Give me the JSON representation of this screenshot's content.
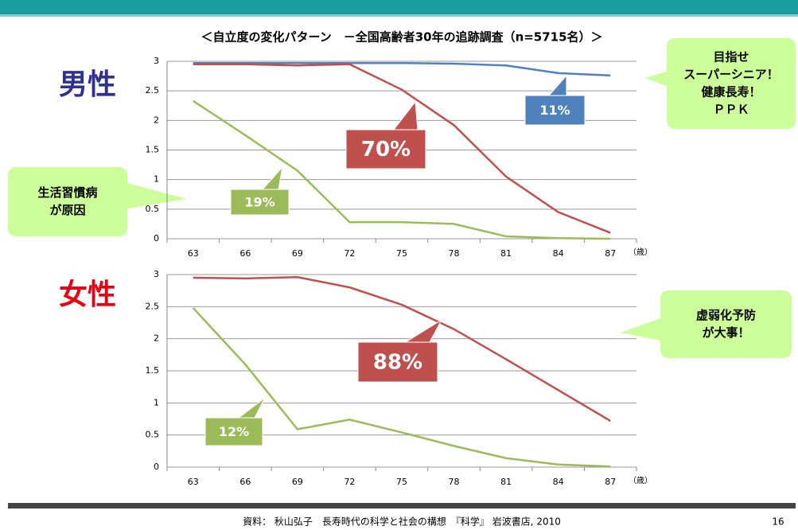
{
  "title": "＜自立度の変化パターン　－全国高齢者30年の追跡調査（n=5715名）＞",
  "source": "資料： 秋山弘子　長寿時代の科学と社会の構想　『科学』 岩波書店, 2010",
  "page_number": "16",
  "callouts": [
    {
      "lines": [
        "目指せ",
        "スーパーシニア！",
        "健康長寿！",
        "ＰＰＫ"
      ]
    },
    {
      "lines": [
        "生活習慣病",
        "が原因"
      ]
    },
    {
      "lines": [
        "虚弱化予防",
        "が大事！"
      ]
    }
  ],
  "chart_data": [
    {
      "type": "line",
      "title": "男性",
      "title_color": "#2e3192",
      "x_label": "（歳）",
      "categories": [
        "63",
        "66",
        "69",
        "72",
        "75",
        "78",
        "81",
        "84",
        "87"
      ],
      "ylim": [
        0,
        3
      ],
      "yticks": [
        0,
        0.5,
        1,
        1.5,
        2,
        2.5,
        3
      ],
      "grid": true,
      "series": [
        {
          "color": "#4f81bd",
          "values": [
            2.97,
            2.97,
            2.97,
            2.97,
            2.97,
            2.96,
            2.93,
            2.8,
            2.76
          ]
        },
        {
          "color": "#c0504d",
          "values": [
            2.95,
            2.95,
            2.93,
            2.95,
            2.52,
            1.92,
            1.05,
            0.45,
            0.1
          ]
        },
        {
          "color": "#9bbb59",
          "values": [
            2.33,
            1.75,
            1.15,
            0.28,
            0.28,
            0.25,
            0.04,
            0.01,
            0
          ]
        }
      ],
      "annotations": [
        {
          "text": "11%",
          "color": "#4f81bd"
        },
        {
          "text": "70%",
          "color": "#c0504d"
        },
        {
          "text": "19%",
          "color": "#9bbb59"
        }
      ]
    },
    {
      "type": "line",
      "title": "女性",
      "title_color": "#e60012",
      "x_label": "（歳）",
      "categories": [
        "63",
        "66",
        "69",
        "72",
        "75",
        "78",
        "81",
        "84",
        "87"
      ],
      "ylim": [
        0,
        3
      ],
      "yticks": [
        0,
        0.5,
        1,
        1.5,
        2,
        2.5,
        3
      ],
      "grid": true,
      "series": [
        {
          "color": "#c0504d",
          "values": [
            2.95,
            2.94,
            2.96,
            2.8,
            2.53,
            2.15,
            1.68,
            1.2,
            0.72
          ]
        },
        {
          "color": "#9bbb59",
          "values": [
            2.48,
            1.6,
            0.59,
            0.74,
            0.54,
            0.33,
            0.14,
            0.04,
            0.01
          ]
        }
      ],
      "annotations": [
        {
          "text": "88%",
          "color": "#c0504d"
        },
        {
          "text": "12%",
          "color": "#9bbb59"
        }
      ]
    }
  ]
}
